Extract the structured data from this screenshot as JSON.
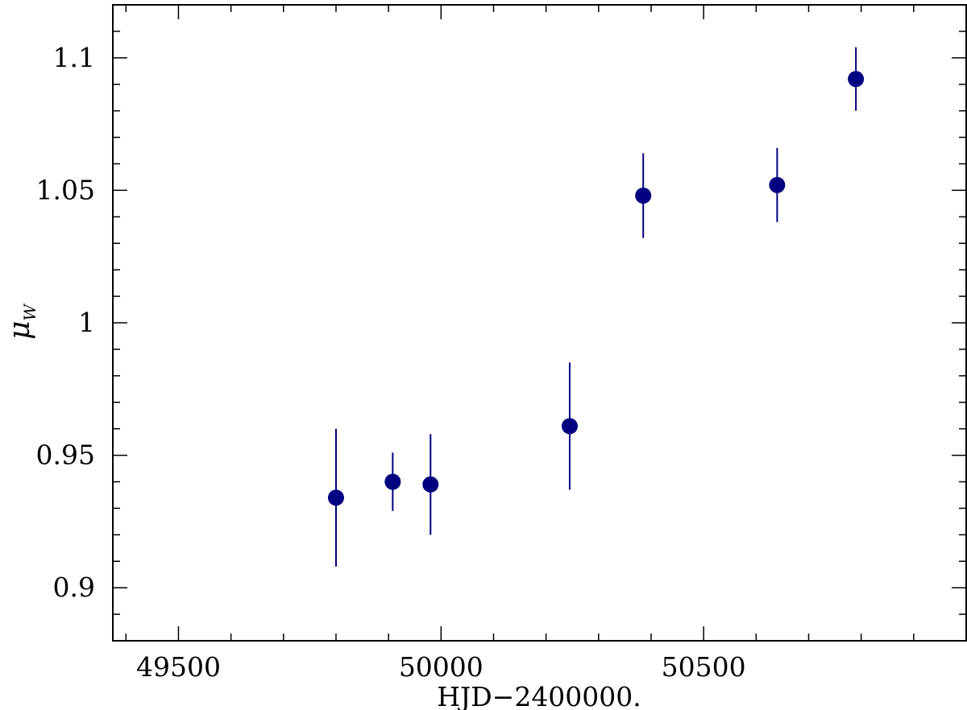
{
  "chart_data": {
    "type": "scatter",
    "xlabel": "HJD−2400000.",
    "ylabel_symbol": "μ",
    "ylabel_subscript": "W",
    "xlim": [
      49375,
      51000
    ],
    "ylim": [
      0.88,
      1.12
    ],
    "x_ticks": [
      49500,
      50000,
      50500
    ],
    "x_tick_labels": [
      "49500",
      "50000",
      "50500"
    ],
    "y_ticks": [
      0.9,
      0.95,
      1.0,
      1.05,
      1.1
    ],
    "y_tick_labels": [
      "0.9",
      "0.95",
      "1",
      "1.05",
      "1.1"
    ],
    "grid": false,
    "marker_color": "#000080",
    "series": [
      {
        "points": [
          {
            "x": 49800,
            "y": 0.934,
            "err": 0.026
          },
          {
            "x": 49908,
            "y": 0.94,
            "err": 0.011
          },
          {
            "x": 49980,
            "y": 0.939,
            "err": 0.019
          },
          {
            "x": 50245,
            "y": 0.961,
            "err": 0.024
          },
          {
            "x": 50385,
            "y": 1.048,
            "err": 0.016
          },
          {
            "x": 50640,
            "y": 1.052,
            "err": 0.014
          },
          {
            "x": 50790,
            "y": 1.092,
            "err": 0.012
          }
        ]
      }
    ]
  }
}
